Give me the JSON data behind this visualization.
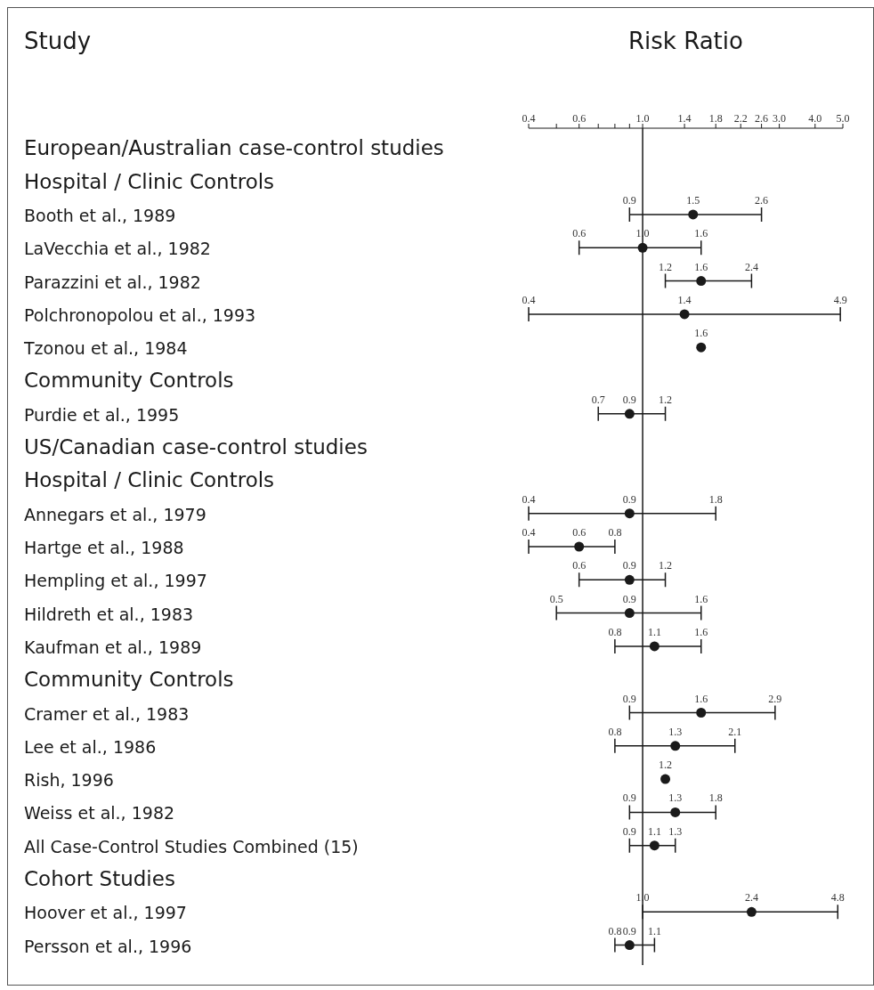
{
  "chart_data": {
    "type": "scatter",
    "orientation": "horizontal",
    "xlabel": "Risk Ratio",
    "ylabel": "Study",
    "log": "x",
    "marker": "circle",
    "color": "#1a1a1a",
    "categories": [
      "European/Australian case-control studies",
      "Hospital / Clinic Controls",
      "Booth et al., 1989",
      "LaVecchia et al., 1982",
      "Parazzini et al., 1982",
      "Polchronopolou et al., 1993",
      "Tzonou et al., 1984",
      "Community Controls",
      "Purdie et al., 1995",
      "US/Canadian case-control studies",
      "Hospital / Clinic Controls",
      "Annegars et al., 1979",
      "Hartge et al., 1988",
      "Hempling et al., 1997",
      "Hildreth et al., 1983",
      "Kaufman et al., 1989",
      "Community Controls",
      "Cramer et al., 1983",
      "Lee et al., 1986",
      "Rish, 1996",
      "Weiss et al., 1982",
      "All Case-Control Studies Combined (15)",
      "Cohort Studies",
      "Hoover et al., 1997",
      "Persson et al., 1996"
    ],
    "values": [
      null,
      null,
      1.5,
      1.0,
      1.6,
      1.4,
      1.6,
      null,
      0.9,
      null,
      null,
      0.9,
      0.6,
      0.9,
      0.9,
      1.1,
      null,
      1.6,
      1.3,
      1.2,
      1.3,
      1.1,
      null,
      2.4,
      0.9
    ],
    "value_labels": [
      null,
      null,
      "1.5",
      "1.0",
      "1.6",
      "1.4",
      "1.6",
      null,
      "0.9",
      null,
      null,
      "0.9",
      "0.6",
      "0.9",
      "0.9",
      "1.1",
      null,
      "1.6",
      "1.3",
      "1.2",
      "1.3",
      "1.1",
      null,
      "2.4",
      "0.9"
    ],
    "errors": [
      null,
      null,
      [
        0.9,
        2.6
      ],
      [
        0.6,
        1.6
      ],
      [
        1.2,
        2.4
      ],
      [
        0.4,
        4.9
      ],
      null,
      null,
      [
        0.7,
        1.2
      ],
      null,
      null,
      [
        0.4,
        1.8
      ],
      [
        0.4,
        0.8
      ],
      [
        0.6,
        1.2
      ],
      [
        0.5,
        1.6
      ],
      [
        0.8,
        1.6
      ],
      null,
      [
        0.9,
        2.9
      ],
      [
        0.8,
        2.1
      ],
      null,
      [
        0.9,
        1.8
      ],
      [
        0.9,
        1.3
      ],
      null,
      [
        1.0,
        4.8
      ],
      [
        0.8,
        1.1
      ]
    ],
    "annotations": [
      "0.9",
      "2.6",
      "0.6",
      "1.6",
      "1.2",
      "2.4",
      "0.4",
      "4.9",
      "0.7",
      "1.2",
      "0.4",
      "1.8",
      "0.4",
      "0.8",
      "0.6",
      "1.2",
      "0.5",
      "1.6",
      "0.8",
      "1.6",
      "0.9",
      "2.9",
      "0.8",
      "2.1",
      "0.9",
      "1.8",
      "0.9",
      "1.3",
      "1.0",
      "4.8",
      "0.8",
      "1.1"
    ],
    "xlim": [
      0.4,
      5
    ],
    "xticks": [
      0.4,
      {
        "value": 0.5,
        "label": null
      },
      0.6,
      {
        "value": 0.7,
        "label": null
      },
      {
        "value": 0.8,
        "label": null
      },
      {
        "value": 0.9,
        "label": null
      },
      {
        "value": 1,
        "label": "1.0"
      },
      1.4,
      1.8,
      2.2,
      2.6,
      {
        "value": 3,
        "label": "3.0"
      },
      {
        "value": 4,
        "label": "4.0"
      },
      {
        "value": 5,
        "label": "5.0"
      }
    ],
    "ref_lines": [
      {
        "axis": "x",
        "value": 1,
        "color": "#1a1a1a"
      }
    ]
  }
}
